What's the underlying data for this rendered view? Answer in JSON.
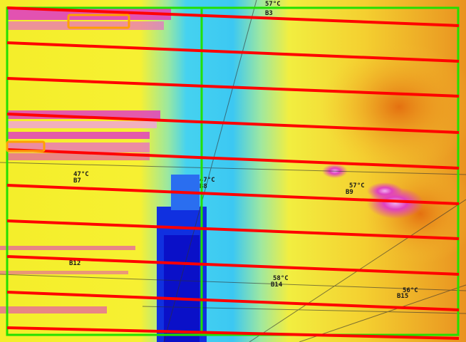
{
  "labels": [
    {
      "id": "zone-b3",
      "temp": "57°C",
      "zone": "B3"
    },
    {
      "id": "zone-b7",
      "temp": "47°C",
      "zone": "B7"
    },
    {
      "id": "zone-b8",
      "temp": "47°C",
      "zone": "B8"
    },
    {
      "id": "zone-b9",
      "temp": "57°C",
      "zone": "B9"
    },
    {
      "id": "zone-b12",
      "temp": "",
      "zone": "B12"
    },
    {
      "id": "zone-b14",
      "temp": "58°C",
      "zone": "B14"
    },
    {
      "id": "zone-b15",
      "temp": "56°C",
      "zone": "B15"
    }
  ],
  "colors": {
    "scan_line": "#ff0000",
    "roi_box": "#22e000",
    "hotspot_box": "#ffa000",
    "cold": "#0a1ad8",
    "cool": "#35d0f0",
    "warm": "#f3f000",
    "hot": "#f08a10",
    "hottest": "#e040c0"
  }
}
